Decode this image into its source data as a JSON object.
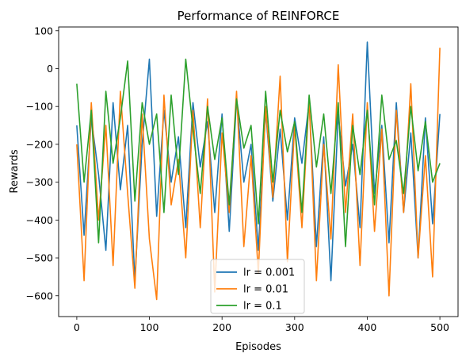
{
  "chart_data": {
    "type": "line",
    "title": "Performance of REINFORCE",
    "xlabel": "Episodes",
    "ylabel": "Rewards",
    "xlim": [
      -25,
      525
    ],
    "ylim": [
      -655,
      110
    ],
    "xticks": [
      0,
      100,
      200,
      300,
      400,
      500
    ],
    "yticks": [
      -600,
      -500,
      -400,
      -300,
      -200,
      -100,
      0,
      100
    ],
    "grid": false,
    "legend_position": "lower center",
    "series": [
      {
        "name": "lr = 0.001",
        "color": "#1f77b4",
        "x": [
          0,
          10,
          20,
          30,
          40,
          50,
          60,
          70,
          80,
          90,
          100,
          110,
          120,
          130,
          140,
          150,
          160,
          170,
          180,
          190,
          200,
          210,
          220,
          230,
          240,
          250,
          260,
          270,
          280,
          290,
          300,
          310,
          320,
          330,
          340,
          350,
          360,
          370,
          380,
          390,
          400,
          410,
          420,
          430,
          440,
          450,
          460,
          470,
          480,
          490,
          500
        ],
        "values": [
          -150,
          -440,
          -130,
          -280,
          -480,
          -90,
          -320,
          -150,
          -560,
          -200,
          25,
          -390,
          -110,
          -300,
          -180,
          -420,
          -90,
          -260,
          -140,
          -380,
          -120,
          -430,
          -80,
          -300,
          -200,
          -480,
          -110,
          -350,
          -160,
          -400,
          -130,
          -250,
          -90,
          -470,
          -180,
          -560,
          -120,
          -310,
          -200,
          -420,
          70,
          -330,
          -150,
          -460,
          -90,
          -380,
          -170,
          -500,
          -130,
          -410,
          -120
        ]
      },
      {
        "name": "lr = 0.01",
        "color": "#ff7f0e",
        "x": [
          0,
          10,
          20,
          30,
          40,
          50,
          60,
          70,
          80,
          90,
          100,
          110,
          120,
          130,
          140,
          150,
          160,
          170,
          180,
          190,
          200,
          210,
          220,
          230,
          240,
          250,
          260,
          270,
          280,
          290,
          300,
          310,
          320,
          330,
          340,
          350,
          360,
          370,
          380,
          390,
          400,
          410,
          420,
          430,
          440,
          450,
          460,
          470,
          480,
          490,
          500
        ],
        "values": [
          -200,
          -560,
          -90,
          -400,
          -150,
          -520,
          -60,
          -330,
          -580,
          -120,
          -450,
          -610,
          -70,
          -360,
          -240,
          -500,
          -110,
          -420,
          -80,
          -590,
          -170,
          -380,
          -60,
          -470,
          -230,
          -540,
          -100,
          -340,
          -20,
          -510,
          -150,
          -420,
          -80,
          -560,
          -200,
          -450,
          10,
          -380,
          -120,
          -520,
          -90,
          -430,
          -160,
          -600,
          -110,
          -380,
          -40,
          -500,
          -230,
          -550,
          55
        ]
      },
      {
        "name": "lr = 0.1",
        "color": "#2ca02c",
        "x": [
          0,
          10,
          20,
          30,
          40,
          50,
          60,
          70,
          80,
          90,
          100,
          110,
          120,
          130,
          140,
          150,
          160,
          170,
          180,
          190,
          200,
          210,
          220,
          230,
          240,
          250,
          260,
          270,
          280,
          290,
          300,
          310,
          320,
          330,
          340,
          350,
          360,
          370,
          380,
          390,
          400,
          410,
          420,
          430,
          440,
          450,
          460,
          470,
          480,
          490,
          500
        ],
        "values": [
          -40,
          -300,
          -110,
          -460,
          -60,
          -250,
          -130,
          20,
          -350,
          -90,
          -200,
          -120,
          -380,
          -70,
          -280,
          25,
          -160,
          -330,
          -100,
          -240,
          -130,
          -360,
          -80,
          -210,
          -150,
          -410,
          -60,
          -300,
          -110,
          -220,
          -140,
          -380,
          -70,
          -260,
          -120,
          -330,
          -90,
          -470,
          -150,
          -280,
          -110,
          -360,
          -70,
          -240,
          -190,
          -330,
          -100,
          -270,
          -140,
          -300,
          -250
        ]
      }
    ]
  }
}
